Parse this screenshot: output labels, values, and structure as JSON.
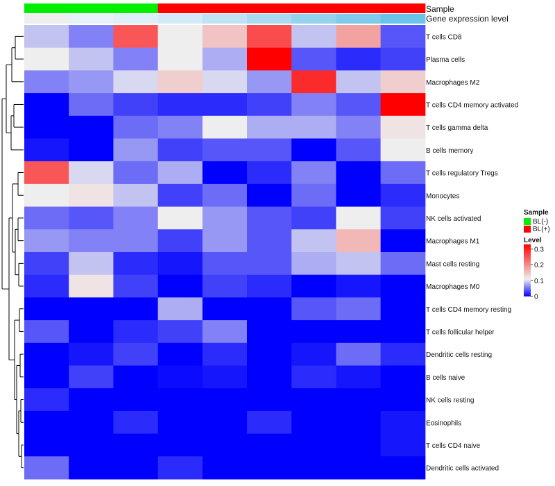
{
  "chart_data": {
    "type": "heatmap",
    "annotation_rows": [
      {
        "label": "Sample",
        "values": [
          "BL(-)",
          "BL(-)",
          "BL(-)",
          "BL(+)",
          "BL(+)",
          "BL(+)",
          "BL(+)",
          "BL(+)",
          "BL(+)"
        ]
      },
      {
        "label": "Gene expression level",
        "values": [
          1,
          2,
          3,
          4,
          5,
          6,
          7,
          8,
          9
        ]
      }
    ],
    "row_labels": [
      "T cells CD8",
      "Plasma cells",
      "Macrophages M2",
      "T cells CD4 memory activated",
      "T cells gamma delta",
      "B cells memory",
      "T cells regulatory  Tregs",
      "Monocytes",
      "NK cells activated",
      "Macrophages M1",
      "Mast cells resting",
      "Macrophages M0",
      "T cells CD4 memory resting",
      "T cells follicular helper",
      "Dendritic cells resting",
      "B cells naive",
      "NK cells resting",
      "Eosinophils",
      "T cells CD4 naive",
      "Dendritic cells activated"
    ],
    "matrix": [
      [
        0.09,
        0.06,
        0.25,
        0.11,
        0.15,
        0.26,
        0.09,
        0.18,
        0.04
      ],
      [
        0.11,
        0.09,
        0.06,
        0.11,
        0.08,
        0.33,
        0.04,
        0.02,
        0.03
      ],
      [
        0.06,
        0.07,
        0.1,
        0.14,
        0.1,
        0.07,
        0.29,
        0.09,
        0.14
      ],
      [
        0.0,
        0.05,
        0.03,
        0.02,
        0.02,
        0.03,
        0.06,
        0.04,
        0.33
      ],
      [
        0.0,
        0.0,
        0.05,
        0.06,
        0.11,
        0.08,
        0.08,
        0.06,
        0.12
      ],
      [
        0.01,
        0.0,
        0.07,
        0.03,
        0.04,
        0.04,
        0.0,
        0.04,
        0.11
      ],
      [
        0.25,
        0.1,
        0.05,
        0.08,
        0.0,
        0.02,
        0.06,
        0.0,
        0.05
      ],
      [
        0.11,
        0.12,
        0.09,
        0.03,
        0.05,
        0.0,
        0.05,
        0.0,
        0.02
      ],
      [
        0.05,
        0.04,
        0.06,
        0.11,
        0.07,
        0.04,
        0.03,
        0.11,
        0.03
      ],
      [
        0.07,
        0.06,
        0.06,
        0.03,
        0.07,
        0.04,
        0.09,
        0.16,
        0.0
      ],
      [
        0.03,
        0.09,
        0.02,
        0.01,
        0.04,
        0.04,
        0.08,
        0.09,
        0.05
      ],
      [
        0.02,
        0.12,
        0.03,
        0.0,
        0.03,
        0.02,
        0.0,
        0.01,
        0.0
      ],
      [
        0.0,
        0.0,
        0.0,
        0.08,
        0.0,
        0.0,
        0.04,
        0.05,
        0.0
      ],
      [
        0.04,
        0.0,
        0.02,
        0.03,
        0.06,
        0.0,
        0.0,
        0.0,
        0.0
      ],
      [
        0.0,
        0.01,
        0.03,
        0.0,
        0.02,
        0.0,
        0.01,
        0.05,
        0.02
      ],
      [
        0.0,
        0.03,
        0.0,
        0.005,
        0.01,
        0.0,
        0.02,
        0.01,
        0.0
      ],
      [
        0.02,
        0.0,
        0.0,
        0.0,
        0.0,
        0.0,
        0.0,
        0.0,
        0.0
      ],
      [
        0.0,
        0.0,
        0.02,
        0.0,
        0.0,
        0.02,
        0.0,
        0.0,
        0.01
      ],
      [
        0.0,
        0.0,
        0.0,
        0.0,
        0.0,
        0.0,
        0.0,
        0.0,
        0.01
      ],
      [
        0.05,
        0.0,
        0.0,
        0.02,
        0.0,
        0.0,
        0.0,
        0.0,
        0.0
      ]
    ],
    "color_scale": {
      "low": "#0000FF",
      "mid": "#EEEEEE",
      "high": "#FF0000",
      "mid_value": 0.11,
      "range": [
        0,
        0.33
      ]
    },
    "legends": {
      "sample": {
        "title": "Sample",
        "items": [
          {
            "label": "BL(-)",
            "color": "#00EE00"
          },
          {
            "label": "BL(+)",
            "color": "#FF0000"
          }
        ]
      },
      "level": {
        "title": "Level",
        "ticks": [
          "0.3",
          "0.2",
          "0.1",
          "0"
        ],
        "tick_values": [
          0.3,
          0.2,
          0.1,
          0
        ]
      }
    },
    "gene_expression_colors": [
      "#EEEEEE",
      "#E6F2F8",
      "#DEEFF7",
      "#D2EBF6",
      "#BFE3F3",
      "#A9DAF0",
      "#94D2EE",
      "#80CAEC",
      "#6CC3EA"
    ],
    "row_dendrogram": true,
    "legend_placement": "right"
  }
}
